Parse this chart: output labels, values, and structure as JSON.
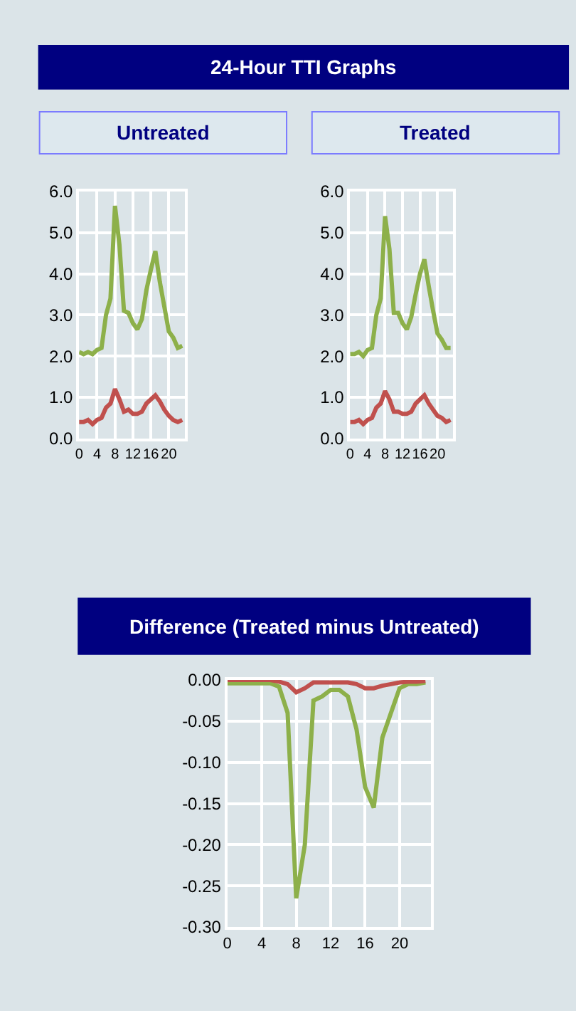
{
  "chart_data": [
    {
      "type": "other",
      "title": "24-Hour TTI Graphs"
    },
    {
      "type": "line",
      "title": "Untreated",
      "x": [
        0,
        1,
        2,
        3,
        4,
        5,
        6,
        7,
        8,
        9,
        10,
        11,
        12,
        13,
        14,
        15,
        16,
        17,
        18,
        19,
        20,
        21,
        22,
        23
      ],
      "grid": true,
      "marker": "none",
      "line_style": "solid",
      "xlim": [
        0,
        23.6
      ],
      "xticks": [
        0,
        4,
        8,
        12,
        16,
        20
      ],
      "ylim": [
        0,
        6
      ],
      "yticks": [
        {
          "value": 0,
          "label": "0.0"
        },
        {
          "value": 1,
          "label": "1.0"
        },
        {
          "value": 2,
          "label": "2.0"
        },
        {
          "value": 3,
          "label": "3.0"
        },
        {
          "value": 4,
          "label": "4.0"
        },
        {
          "value": 5,
          "label": "5.0"
        },
        {
          "value": 6,
          "label": "6.0"
        }
      ],
      "series": [
        {
          "color": "#8db04a",
          "values": [
            2.1,
            2.05,
            2.1,
            2.05,
            2.15,
            2.2,
            3.0,
            3.4,
            5.65,
            4.7,
            3.1,
            3.05,
            2.8,
            2.65,
            2.9,
            3.6,
            4.1,
            4.55,
            3.8,
            3.2,
            2.6,
            2.45,
            2.2,
            2.25
          ]
        },
        {
          "color": "#c0504d",
          "values": [
            0.4,
            0.4,
            0.45,
            0.35,
            0.45,
            0.5,
            0.75,
            0.85,
            1.2,
            0.95,
            0.65,
            0.7,
            0.6,
            0.6,
            0.65,
            0.85,
            0.95,
            1.05,
            0.9,
            0.7,
            0.55,
            0.45,
            0.4,
            0.45
          ]
        }
      ]
    },
    {
      "type": "line",
      "title": "Treated",
      "x": [
        0,
        1,
        2,
        3,
        4,
        5,
        6,
        7,
        8,
        9,
        10,
        11,
        12,
        13,
        14,
        15,
        16,
        17,
        18,
        19,
        20,
        21,
        22,
        23
      ],
      "grid": true,
      "marker": "none",
      "line_style": "solid",
      "xlim": [
        0,
        23.6
      ],
      "xticks": [
        0,
        4,
        8,
        12,
        16,
        20
      ],
      "ylim": [
        0,
        6
      ],
      "yticks": [
        {
          "value": 0,
          "label": "0.0"
        },
        {
          "value": 1,
          "label": "1.0"
        },
        {
          "value": 2,
          "label": "2.0"
        },
        {
          "value": 3,
          "label": "3.0"
        },
        {
          "value": 4,
          "label": "4.0"
        },
        {
          "value": 5,
          "label": "5.0"
        },
        {
          "value": 6,
          "label": "6.0"
        }
      ],
      "series": [
        {
          "color": "#8db04a",
          "values": [
            2.05,
            2.05,
            2.1,
            2.0,
            2.15,
            2.2,
            3.0,
            3.4,
            5.4,
            4.6,
            3.05,
            3.05,
            2.8,
            2.65,
            2.95,
            3.5,
            4.0,
            4.35,
            3.7,
            3.1,
            2.55,
            2.4,
            2.2,
            2.2
          ]
        },
        {
          "color": "#c0504d",
          "values": [
            0.4,
            0.4,
            0.45,
            0.35,
            0.45,
            0.5,
            0.75,
            0.85,
            1.15,
            0.95,
            0.65,
            0.65,
            0.6,
            0.6,
            0.65,
            0.85,
            0.95,
            1.05,
            0.85,
            0.7,
            0.55,
            0.5,
            0.4,
            0.45
          ]
        }
      ]
    },
    {
      "type": "line",
      "title": "Difference (Treated minus Untreated)",
      "x": [
        0,
        1,
        2,
        3,
        4,
        5,
        6,
        7,
        8,
        9,
        10,
        11,
        12,
        13,
        14,
        15,
        16,
        17,
        18,
        19,
        20,
        21,
        22,
        23
      ],
      "grid": true,
      "marker": "none",
      "line_style": "solid",
      "xlim": [
        0,
        23.6
      ],
      "xticks": [
        0,
        4,
        8,
        12,
        16,
        20
      ],
      "ylim": [
        -0.3,
        0
      ],
      "yticks": [
        {
          "value": -0.3,
          "label": "-0.30"
        },
        {
          "value": -0.25,
          "label": "-0.25"
        },
        {
          "value": -0.2,
          "label": "-0.20"
        },
        {
          "value": -0.15,
          "label": "-0.15"
        },
        {
          "value": -0.1,
          "label": "-0.10"
        },
        {
          "value": -0.05,
          "label": "-0.05"
        },
        {
          "value": 0,
          "label": "0.00"
        }
      ],
      "series": [
        {
          "color": "#8db04a",
          "values": [
            -0.004,
            -0.004,
            -0.004,
            -0.004,
            -0.004,
            -0.004,
            -0.008,
            -0.04,
            -0.265,
            -0.2,
            -0.025,
            -0.02,
            -0.012,
            -0.012,
            -0.02,
            -0.06,
            -0.13,
            -0.155,
            -0.07,
            -0.04,
            -0.01,
            -0.005,
            -0.005,
            -0.003
          ]
        },
        {
          "color": "#c0504d",
          "values": [
            0,
            0,
            0,
            0,
            0,
            0,
            -0.002,
            -0.005,
            -0.015,
            -0.01,
            -0.003,
            -0.003,
            -0.003,
            -0.003,
            -0.003,
            -0.005,
            -0.01,
            -0.01,
            -0.007,
            -0.005,
            -0.003,
            -0.002,
            -0.002,
            -0.001
          ]
        }
      ]
    }
  ]
}
